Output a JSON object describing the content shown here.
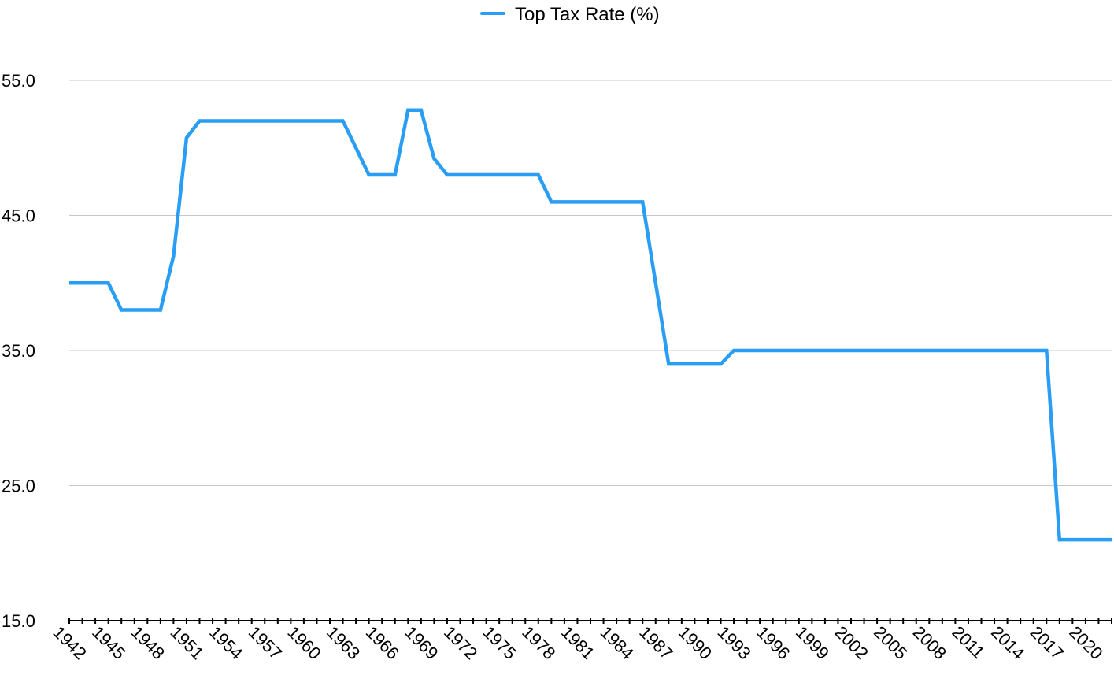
{
  "chart_data": {
    "type": "line",
    "title": "",
    "xlabel": "",
    "ylabel": "",
    "legend_position": "top-center",
    "grid": "horizontal",
    "ylim": [
      15,
      55
    ],
    "yticks": [
      "15.0",
      "25.0",
      "35.0",
      "45.0",
      "55.0"
    ],
    "x": [
      1942,
      1943,
      1944,
      1945,
      1946,
      1947,
      1948,
      1949,
      1950,
      1951,
      1952,
      1953,
      1954,
      1955,
      1956,
      1957,
      1958,
      1959,
      1960,
      1961,
      1962,
      1963,
      1964,
      1965,
      1966,
      1967,
      1968,
      1969,
      1970,
      1971,
      1972,
      1973,
      1974,
      1975,
      1976,
      1977,
      1978,
      1979,
      1980,
      1981,
      1982,
      1983,
      1984,
      1985,
      1986,
      1987,
      1988,
      1989,
      1990,
      1991,
      1992,
      1993,
      1994,
      1995,
      1996,
      1997,
      1998,
      1999,
      2000,
      2001,
      2002,
      2003,
      2004,
      2005,
      2006,
      2007,
      2008,
      2009,
      2010,
      2011,
      2012,
      2013,
      2014,
      2015,
      2016,
      2017,
      2018,
      2019,
      2020,
      2021,
      2022
    ],
    "xtick_labels": [
      "1942",
      "1945",
      "1948",
      "1951",
      "1954",
      "1957",
      "1960",
      "1963",
      "1966",
      "1969",
      "1972",
      "1975",
      "1978",
      "1981",
      "1984",
      "1987",
      "1990",
      "1993",
      "1996",
      "1999",
      "2002",
      "2005",
      "2008",
      "2011",
      "2014",
      "2017",
      "2020"
    ],
    "series": [
      {
        "name": "Top Tax Rate (%)",
        "color": "#2a9df4",
        "values": [
          40,
          40,
          40,
          40,
          38,
          38,
          38,
          38,
          42,
          50.75,
          52,
          52,
          52,
          52,
          52,
          52,
          52,
          52,
          52,
          52,
          52,
          52,
          50,
          48,
          48,
          48,
          52.8,
          52.8,
          49.2,
          48,
          48,
          48,
          48,
          48,
          48,
          48,
          48,
          46,
          46,
          46,
          46,
          46,
          46,
          46,
          46,
          40,
          34,
          34,
          34,
          34,
          34,
          35,
          35,
          35,
          35,
          35,
          35,
          35,
          35,
          35,
          35,
          35,
          35,
          35,
          35,
          35,
          35,
          35,
          35,
          35,
          35,
          35,
          35,
          35,
          35,
          35,
          21,
          21,
          21,
          21,
          21
        ]
      }
    ]
  }
}
